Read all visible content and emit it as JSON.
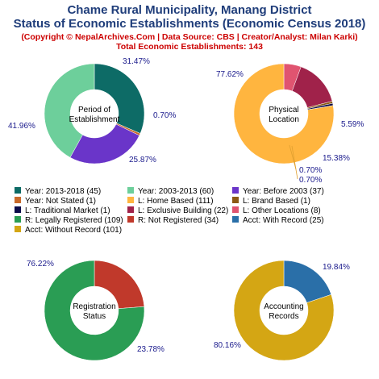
{
  "title_line1": "Chame Rural Municipality, Manang District",
  "title_line2": "Status of Economic Establishments (Economic Census 2018)",
  "copyright": "(Copyright © NepalArchives.Com | Data Source: CBS | Creator/Analyst: Milan Karki)",
  "total": "Total Economic Establishments: 143",
  "chart_data": [
    {
      "type": "pie",
      "center_label": [
        "Period of",
        "Establishment"
      ],
      "slices": [
        {
          "label": "Year: 2013-2018",
          "value": 45,
          "pct": "31.47%",
          "color": "#0d6b66"
        },
        {
          "label": "Year: Not Stated",
          "value": 1,
          "pct": "0.70%",
          "color": "#c96a2b"
        },
        {
          "label": "Year: Before 2003",
          "value": 37,
          "pct": "25.87%",
          "color": "#6a35c9"
        },
        {
          "label": "Year: 2003-2013",
          "value": 60,
          "pct": "41.96%",
          "color": "#6dcf9b"
        }
      ]
    },
    {
      "type": "pie",
      "center_label": [
        "Physical",
        "Location"
      ],
      "slices": [
        {
          "label": "L: Other Locations",
          "value": 8,
          "pct": "5.59%",
          "color": "#e05470"
        },
        {
          "label": "L: Exclusive Building",
          "value": 22,
          "pct": "15.38%",
          "color": "#a0224a"
        },
        {
          "label": "L: Brand Based",
          "value": 1,
          "pct": "0.70%",
          "color": "#8c5a14"
        },
        {
          "label": "L: Traditional Market",
          "value": 1,
          "pct": "0.70%",
          "color": "#0b0b4a"
        },
        {
          "label": "L: Home Based",
          "value": 111,
          "pct": "77.62%",
          "color": "#ffb53f"
        }
      ]
    },
    {
      "type": "pie",
      "center_label": [
        "Registration",
        "Status"
      ],
      "slices": [
        {
          "label": "R: Not Registered",
          "value": 34,
          "pct": "23.78%",
          "color": "#c0392b"
        },
        {
          "label": "R: Legally Registered",
          "value": 109,
          "pct": "76.22%",
          "color": "#2a9d54"
        }
      ]
    },
    {
      "type": "pie",
      "center_label": [
        "Accounting",
        "Records"
      ],
      "slices": [
        {
          "label": "Acct: With Record",
          "value": 25,
          "pct": "19.84%",
          "color": "#2a6fa8"
        },
        {
          "label": "Acct: Without Record",
          "value": 101,
          "pct": "80.16%",
          "color": "#d4a614"
        }
      ]
    }
  ],
  "legend": [
    {
      "text": "Year: 2013-2018 (45)",
      "color": "#0d6b66"
    },
    {
      "text": "Year: 2003-2013 (60)",
      "color": "#6dcf9b"
    },
    {
      "text": "Year: Before 2003 (37)",
      "color": "#6a35c9"
    },
    {
      "text": "Year: Not Stated (1)",
      "color": "#c96a2b"
    },
    {
      "text": "L: Home Based (111)",
      "color": "#ffb53f"
    },
    {
      "text": "L: Brand Based (1)",
      "color": "#8c5a14"
    },
    {
      "text": "L: Traditional Market (1)",
      "color": "#0b0b4a"
    },
    {
      "text": "L: Exclusive Building (22)",
      "color": "#a0224a"
    },
    {
      "text": "L: Other Locations (8)",
      "color": "#e05470"
    },
    {
      "text": "R: Legally Registered (109)",
      "color": "#2a9d54"
    },
    {
      "text": "R: Not Registered (34)",
      "color": "#c0392b"
    },
    {
      "text": "Acct: With Record (25)",
      "color": "#2a6fa8"
    },
    {
      "text": "Acct: Without Record (101)",
      "color": "#d4a614"
    }
  ]
}
